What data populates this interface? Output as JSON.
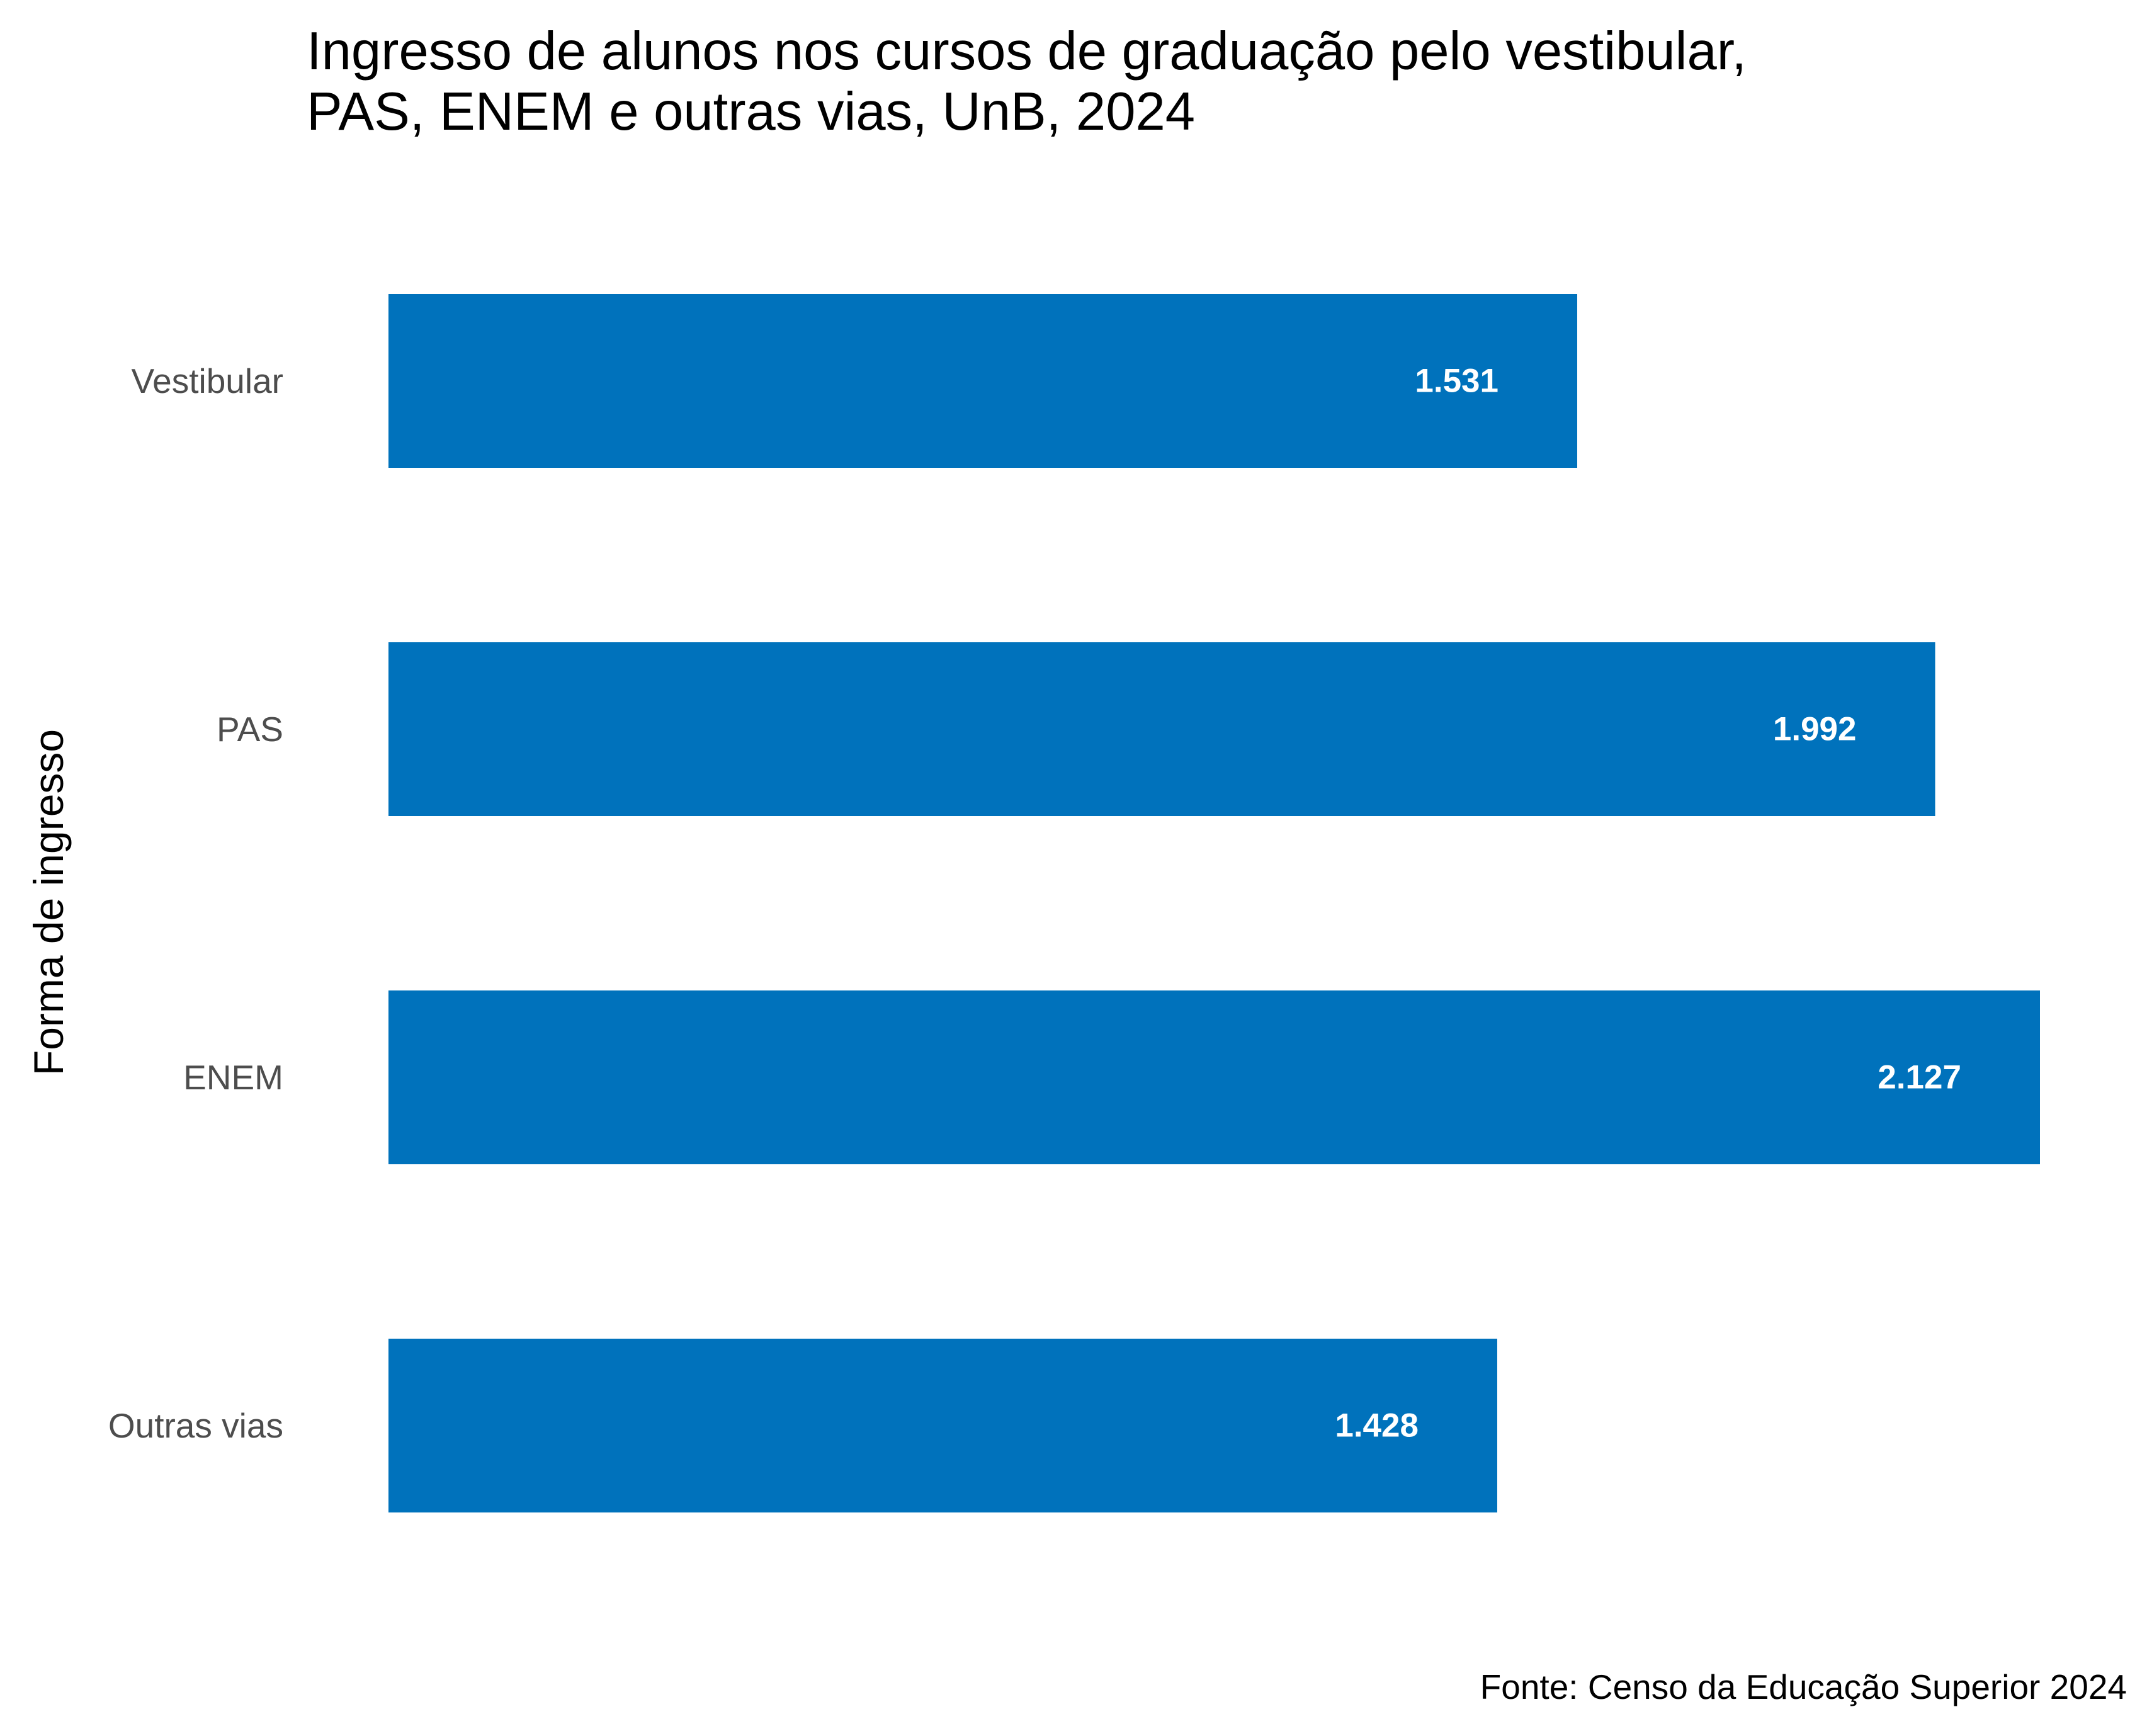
{
  "chart_data": {
    "type": "bar",
    "orientation": "horizontal",
    "title_lines": [
      "Ingresso de alunos nos cursos de graduação pelo vestibular,",
      "PAS, ENEM e outras vias, UnB, 2024"
    ],
    "ylabel": "Forma de ingresso",
    "xlabel": "",
    "categories": [
      "Vestibular",
      "PAS",
      "ENEM",
      "Outras vias"
    ],
    "values": [
      1531,
      1992,
      2127,
      1428
    ],
    "value_labels": [
      "1.531",
      "1.992",
      "2.127",
      "1.428"
    ],
    "bar_color": "#0072bc",
    "xlim": [
      0,
      2127
    ],
    "grid": false,
    "legend": "none",
    "caption": "Fonte: Censo da Educação Superior 2024"
  }
}
